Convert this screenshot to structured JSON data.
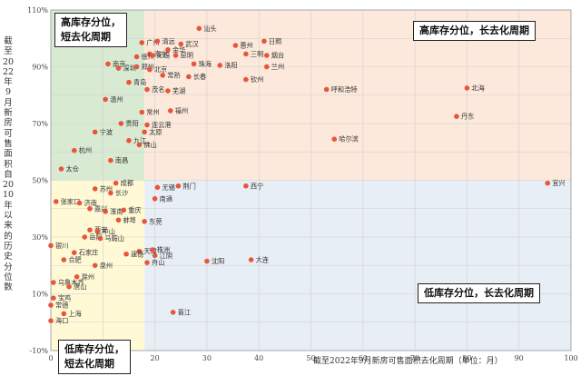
{
  "chart_data": {
    "type": "scatter",
    "xlabel": "截至2022年9月新房可售面积去化周期（单位：月）",
    "ylabel": "截至2022年9月新房可售面积自2010年以来的历史分位数",
    "xlim": [
      0,
      100
    ],
    "ylim": [
      -10,
      110
    ],
    "x_ticks": [
      "0",
      "10",
      "20",
      "30",
      "40",
      "50",
      "60",
      "70",
      "80",
      "90",
      "100"
    ],
    "y_ticks": [
      "-10%",
      "10%",
      "30%",
      "50%",
      "70%",
      "90%",
      "110%"
    ],
    "grid": true,
    "colors": {
      "points": "#e8563a",
      "q_topleft": "#d9ead3",
      "q_topright": "#fce9db",
      "q_bottomleft": "#fff9d6",
      "q_bottomright": "#e8eef5"
    },
    "quadrants": {
      "top_left": "高库存分位，\n短去化周期",
      "top_right": "高库存分位，长去化周期",
      "bottom_left": "低库存分位，\n短去化周期",
      "bottom_right": "低库存分位，长去化周期"
    },
    "points": [
      {
        "name": "汕头",
        "x": 28.5,
        "y": 103.5
      },
      {
        "name": "广州",
        "x": 17.5,
        "y": 98.5
      },
      {
        "name": "清远",
        "x": 20.5,
        "y": 99
      },
      {
        "name": "武汉",
        "x": 25,
        "y": 98
      },
      {
        "name": "惠州",
        "x": 35.5,
        "y": 97.5
      },
      {
        "name": "日照",
        "x": 41,
        "y": 99
      },
      {
        "name": "南宁",
        "x": 19,
        "y": 94.5
      },
      {
        "name": "金华",
        "x": 22.5,
        "y": 96
      },
      {
        "name": "徐州",
        "x": 16.5,
        "y": 93.5
      },
      {
        "name": "无锡",
        "x": 19.5,
        "y": 94
      },
      {
        "name": "昆明",
        "x": 24,
        "y": 94
      },
      {
        "name": "三明",
        "x": 37.5,
        "y": 94.5
      },
      {
        "name": "烟台",
        "x": 41.5,
        "y": 94
      },
      {
        "name": "南京",
        "x": 11,
        "y": 91
      },
      {
        "name": "深圳",
        "x": 13,
        "y": 89.5
      },
      {
        "name": "郑州",
        "x": 16.5,
        "y": 90
      },
      {
        "name": "北京",
        "x": 19,
        "y": 89
      },
      {
        "name": "珠海",
        "x": 27.5,
        "y": 91
      },
      {
        "name": "洛阳",
        "x": 32.5,
        "y": 90.5
      },
      {
        "name": "兰州",
        "x": 41.5,
        "y": 90
      },
      {
        "name": "常熟",
        "x": 21.5,
        "y": 87
      },
      {
        "name": "长春",
        "x": 26.5,
        "y": 86.5
      },
      {
        "name": "青岛",
        "x": 15,
        "y": 84.5
      },
      {
        "name": "茂名",
        "x": 18.5,
        "y": 82
      },
      {
        "name": "芜湖",
        "x": 22.5,
        "y": 81.5
      },
      {
        "name": "钦州",
        "x": 37.5,
        "y": 85.5
      },
      {
        "name": "呼和浩特",
        "x": 53,
        "y": 82
      },
      {
        "name": "北海",
        "x": 80,
        "y": 82.5
      },
      {
        "name": "温州",
        "x": 10.5,
        "y": 78.5
      },
      {
        "name": "常州",
        "x": 17.5,
        "y": 74
      },
      {
        "name": "福州",
        "x": 23,
        "y": 74.5
      },
      {
        "name": "丹东",
        "x": 78,
        "y": 72.5
      },
      {
        "name": "贵阳",
        "x": 13.5,
        "y": 70
      },
      {
        "name": "连云港",
        "x": 18.5,
        "y": 69.5
      },
      {
        "name": "宁波",
        "x": 8.5,
        "y": 67
      },
      {
        "name": "太原",
        "x": 18,
        "y": 67
      },
      {
        "name": "哈尔滨",
        "x": 54.5,
        "y": 64.5
      },
      {
        "name": "九江",
        "x": 15,
        "y": 64
      },
      {
        "name": "佛山",
        "x": 17,
        "y": 62.5
      },
      {
        "name": "杭州",
        "x": 4.5,
        "y": 60.5
      },
      {
        "name": "南昌",
        "x": 11.5,
        "y": 57
      },
      {
        "name": "太仓",
        "x": 2,
        "y": 54
      },
      {
        "name": "成都",
        "x": 12.5,
        "y": 49
      },
      {
        "name": "无锡2",
        "x": 20.5,
        "y": 47.5
      },
      {
        "name": "荆门",
        "x": 24.5,
        "y": 48
      },
      {
        "name": "西宁",
        "x": 37.5,
        "y": 48
      },
      {
        "name": "宜兴",
        "x": 95.5,
        "y": 49
      },
      {
        "name": "苏州",
        "x": 8.5,
        "y": 47
      },
      {
        "name": "长沙",
        "x": 11.5,
        "y": 45.5
      },
      {
        "name": "南通",
        "x": 20,
        "y": 43.5
      },
      {
        "name": "张家口",
        "x": 1,
        "y": 42.5
      },
      {
        "name": "济南",
        "x": 5.5,
        "y": 42
      },
      {
        "name": "嘉兴",
        "x": 7.5,
        "y": 40
      },
      {
        "name": "淮南",
        "x": 10.5,
        "y": 39
      },
      {
        "name": "重庆",
        "x": 14,
        "y": 39.5
      },
      {
        "name": "蚌埠",
        "x": 13,
        "y": 36
      },
      {
        "name": "东莞",
        "x": 18,
        "y": 35.5
      },
      {
        "name": "西安",
        "x": 7.5,
        "y": 32.5
      },
      {
        "name": "中山",
        "x": 9,
        "y": 32
      },
      {
        "name": "岳阳",
        "x": 6.5,
        "y": 30
      },
      {
        "name": "马鞍山",
        "x": 9.5,
        "y": 29.5
      },
      {
        "name": "银川",
        "x": 0,
        "y": 27
      },
      {
        "name": "石家庄",
        "x": 4.5,
        "y": 24.5
      },
      {
        "name": "天津",
        "x": 17,
        "y": 25
      },
      {
        "name": "株洲",
        "x": 19.5,
        "y": 25.5
      },
      {
        "name": "建德",
        "x": 14.5,
        "y": 24
      },
      {
        "name": "江阴",
        "x": 20,
        "y": 23.5
      },
      {
        "name": "合肥",
        "x": 2.5,
        "y": 22
      },
      {
        "name": "沈阳",
        "x": 30,
        "y": 21.5
      },
      {
        "name": "大连",
        "x": 38.5,
        "y": 22
      },
      {
        "name": "舟山",
        "x": 18.5,
        "y": 21
      },
      {
        "name": "泉州",
        "x": 8.5,
        "y": 20
      },
      {
        "name": "滁州",
        "x": 5,
        "y": 16
      },
      {
        "name": "乌鲁木齐",
        "x": 0.5,
        "y": 14
      },
      {
        "name": "唐山",
        "x": 3.5,
        "y": 12.5
      },
      {
        "name": "宝鸡",
        "x": 0.5,
        "y": 8.5
      },
      {
        "name": "常德",
        "x": 0,
        "y": 6
      },
      {
        "name": "上海",
        "x": 2.5,
        "y": 3
      },
      {
        "name": "晋江",
        "x": 23.5,
        "y": 3.5
      },
      {
        "name": "海口",
        "x": 0,
        "y": 0.5
      }
    ]
  }
}
